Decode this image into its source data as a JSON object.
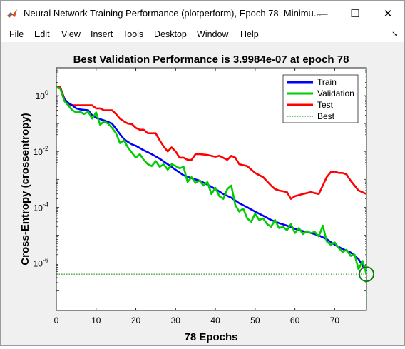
{
  "window": {
    "title": "Neural Network Training Performance (plotperform), Epoch 78, Minimu...",
    "minimize_glyph": "—",
    "maximize_glyph": "☐",
    "close_glyph": "✕",
    "icon": "matlab-icon"
  },
  "menu": {
    "items": [
      "File",
      "Edit",
      "View",
      "Insert",
      "Tools",
      "Desktop",
      "Window",
      "Help"
    ],
    "dock_glyph": "↘"
  },
  "colors": {
    "train": "#0000ff",
    "validation": "#00cc00",
    "test": "#ff0000",
    "best": "#008000"
  },
  "chart_data": {
    "type": "line",
    "title": "Best Validation Performance is 3.9984e-07 at epoch 78",
    "xlabel": "78 Epochs",
    "ylabel": "Cross-Entropy  (crossentropy)",
    "xlim": [
      0,
      78
    ],
    "ylim_exp": [
      -7.7,
      1.0
    ],
    "yscale": "log",
    "xticks": [
      0,
      10,
      20,
      30,
      40,
      50,
      60,
      70
    ],
    "yticks": [
      {
        "base": "10",
        "exp": "0",
        "value": 1
      },
      {
        "base": "10",
        "exp": "-2",
        "value": 0.01
      },
      {
        "base": "10",
        "exp": "-4",
        "value": 0.0001
      },
      {
        "base": "10",
        "exp": "-6",
        "value": 1e-06
      }
    ],
    "legend_position": "top-right",
    "grid": false,
    "series": [
      {
        "name": "Train",
        "color": "#0000ff",
        "points": [
          [
            0,
            2.0
          ],
          [
            1,
            1.8
          ],
          [
            2,
            0.75
          ],
          [
            3,
            0.55
          ],
          [
            4,
            0.45
          ],
          [
            5,
            0.35
          ],
          [
            6,
            0.32
          ],
          [
            7,
            0.31
          ],
          [
            8,
            0.3
          ],
          [
            9,
            0.2
          ],
          [
            10,
            0.16
          ],
          [
            12,
            0.13
          ],
          [
            14,
            0.1
          ],
          [
            15,
            0.065
          ],
          [
            16,
            0.042
          ],
          [
            17,
            0.028
          ],
          [
            18,
            0.022
          ],
          [
            19,
            0.018
          ],
          [
            20,
            0.016
          ],
          [
            22,
            0.011
          ],
          [
            24,
            0.008
          ],
          [
            26,
            0.0055
          ],
          [
            28,
            0.0035
          ],
          [
            30,
            0.0022
          ],
          [
            32,
            0.0014
          ],
          [
            34,
            0.0011
          ],
          [
            36,
            0.0009
          ],
          [
            38,
            0.00065
          ],
          [
            40,
            0.00045
          ],
          [
            42,
            0.0003
          ],
          [
            44,
            0.00022
          ],
          [
            46,
            0.00014
          ],
          [
            48,
            0.0001
          ],
          [
            50,
            7e-05
          ],
          [
            52,
            5e-05
          ],
          [
            54,
            3.5e-05
          ],
          [
            56,
            2.7e-05
          ],
          [
            58,
            2.2e-05
          ],
          [
            60,
            1.7e-05
          ],
          [
            62,
            1.4e-05
          ],
          [
            64,
            1.2e-05
          ],
          [
            66,
            9.8e-06
          ],
          [
            68,
            7.2e-06
          ],
          [
            70,
            4.5e-06
          ],
          [
            72,
            3.2e-06
          ],
          [
            74,
            2.4e-06
          ],
          [
            76,
            1.4e-06
          ],
          [
            77,
            8e-07
          ],
          [
            78,
            5e-07
          ]
        ]
      },
      {
        "name": "Validation",
        "color": "#00cc00",
        "points": [
          [
            0,
            2.0
          ],
          [
            1,
            1.8
          ],
          [
            2,
            0.65
          ],
          [
            3,
            0.45
          ],
          [
            4,
            0.3
          ],
          [
            5,
            0.25
          ],
          [
            6,
            0.26
          ],
          [
            7,
            0.22
          ],
          [
            8,
            0.27
          ],
          [
            9,
            0.15
          ],
          [
            10,
            0.25
          ],
          [
            11,
            0.09
          ],
          [
            12,
            0.12
          ],
          [
            13,
            0.1
          ],
          [
            14,
            0.07
          ],
          [
            15,
            0.045
          ],
          [
            16,
            0.02
          ],
          [
            17,
            0.025
          ],
          [
            18,
            0.014
          ],
          [
            19,
            0.009
          ],
          [
            20,
            0.006
          ],
          [
            21,
            0.008
          ],
          [
            22,
            0.005
          ],
          [
            23,
            0.0035
          ],
          [
            24,
            0.003
          ],
          [
            25,
            0.0045
          ],
          [
            26,
            0.0028
          ],
          [
            27,
            0.0035
          ],
          [
            28,
            0.0022
          ],
          [
            29,
            0.0035
          ],
          [
            30,
            0.003
          ],
          [
            31,
            0.0025
          ],
          [
            32,
            0.0028
          ],
          [
            33,
            0.0008
          ],
          [
            34,
            0.0012
          ],
          [
            35,
            0.00075
          ],
          [
            36,
            0.0009
          ],
          [
            37,
            0.0006
          ],
          [
            38,
            0.0008
          ],
          [
            39,
            0.0003
          ],
          [
            40,
            0.0005
          ],
          [
            41,
            0.00025
          ],
          [
            42,
            0.0002
          ],
          [
            43,
            0.00045
          ],
          [
            44,
            0.0006
          ],
          [
            45,
            0.00012
          ],
          [
            46,
            7e-05
          ],
          [
            47,
            9e-05
          ],
          [
            48,
            4e-05
          ],
          [
            49,
            3e-05
          ],
          [
            50,
            6e-05
          ],
          [
            51,
            3.5e-05
          ],
          [
            52,
            4e-05
          ],
          [
            53,
            2.5e-05
          ],
          [
            54,
            2e-05
          ],
          [
            55,
            3.5e-05
          ],
          [
            56,
            1.8e-05
          ],
          [
            57,
            2e-05
          ],
          [
            58,
            1.5e-05
          ],
          [
            59,
            2.5e-05
          ],
          [
            60,
            1.2e-05
          ],
          [
            61,
            1.8e-05
          ],
          [
            62,
            1.1e-05
          ],
          [
            63,
            1.4e-05
          ],
          [
            64,
            1.2e-05
          ],
          [
            65,
            1.3e-05
          ],
          [
            66,
            9e-06
          ],
          [
            67,
            2.2e-05
          ],
          [
            68,
            6e-06
          ],
          [
            69,
            4.5e-06
          ],
          [
            70,
            5.5e-06
          ],
          [
            71,
            3.5e-06
          ],
          [
            72,
            2.5e-06
          ],
          [
            73,
            3e-06
          ],
          [
            74,
            1.8e-06
          ],
          [
            75,
            2e-06
          ],
          [
            76,
            6e-07
          ],
          [
            77,
            1.2e-06
          ],
          [
            78,
            4e-07
          ]
        ]
      },
      {
        "name": "Test",
        "color": "#ff0000",
        "points": [
          [
            0,
            2.0
          ],
          [
            1,
            2.0
          ],
          [
            2,
            0.8
          ],
          [
            3,
            0.5
          ],
          [
            4,
            0.45
          ],
          [
            5,
            0.45
          ],
          [
            6,
            0.45
          ],
          [
            7,
            0.45
          ],
          [
            8,
            0.45
          ],
          [
            9,
            0.45
          ],
          [
            10,
            0.35
          ],
          [
            11,
            0.35
          ],
          [
            12,
            0.3
          ],
          [
            14,
            0.3
          ],
          [
            15,
            0.22
          ],
          [
            16,
            0.15
          ],
          [
            17,
            0.12
          ],
          [
            18,
            0.1
          ],
          [
            19,
            0.095
          ],
          [
            20,
            0.07
          ],
          [
            21,
            0.06
          ],
          [
            22,
            0.06
          ],
          [
            23,
            0.045
          ],
          [
            24,
            0.045
          ],
          [
            25,
            0.045
          ],
          [
            26,
            0.025
          ],
          [
            27,
            0.015
          ],
          [
            28,
            0.01
          ],
          [
            29,
            0.014
          ],
          [
            30,
            0.01
          ],
          [
            31,
            0.006
          ],
          [
            32,
            0.006
          ],
          [
            33,
            0.005
          ],
          [
            34,
            0.005
          ],
          [
            35,
            0.008
          ],
          [
            36,
            0.008
          ],
          [
            38,
            0.0075
          ],
          [
            40,
            0.0065
          ],
          [
            41,
            0.007
          ],
          [
            43,
            0.005
          ],
          [
            44,
            0.007
          ],
          [
            45,
            0.006
          ],
          [
            46,
            0.0035
          ],
          [
            48,
            0.003
          ],
          [
            50,
            0.0017
          ],
          [
            52,
            0.0012
          ],
          [
            54,
            0.0006
          ],
          [
            55,
            0.00045
          ],
          [
            56,
            0.0004
          ],
          [
            58,
            0.00035
          ],
          [
            59,
            0.0002
          ],
          [
            60,
            0.00025
          ],
          [
            62,
            0.0003
          ],
          [
            64,
            0.00035
          ],
          [
            66,
            0.0003
          ],
          [
            67,
            0.0006
          ],
          [
            68,
            0.0012
          ],
          [
            69,
            0.0018
          ],
          [
            70,
            0.0019
          ],
          [
            71,
            0.0017
          ],
          [
            72,
            0.0017
          ],
          [
            73,
            0.0015
          ],
          [
            74,
            0.0009
          ],
          [
            75,
            0.0006
          ],
          [
            76,
            0.0004
          ],
          [
            78,
            0.0003
          ]
        ]
      }
    ],
    "best": {
      "name": "Best",
      "epoch": 78,
      "value": 3.9984e-07,
      "color": "#008000"
    }
  }
}
